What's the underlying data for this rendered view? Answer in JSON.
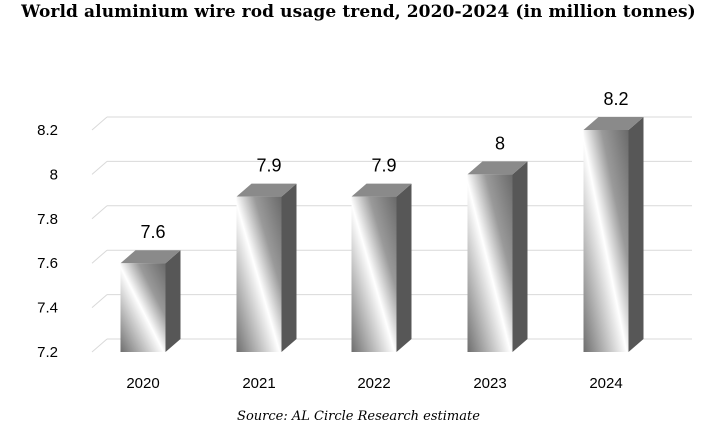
{
  "title": "World aluminium wire rod usage trend, 2020-2024 (in million tonnes)",
  "source": "Source: AL Circle Research estimate",
  "colors": {
    "front_dark": "#6a6a6a",
    "front_light": "#ffffff",
    "side": "#575757",
    "top": "#8a8a8a",
    "grid": "#d9d9d9"
  },
  "chart_data": {
    "type": "bar",
    "style": "3d-cylinder-like box",
    "title": "World aluminium wire rod usage trend, 2020-2024 (in million tonnes)",
    "categories": [
      "2020",
      "2021",
      "2022",
      "2023",
      "2024"
    ],
    "values": [
      7.6,
      7.9,
      7.9,
      8,
      8.2
    ],
    "data_labels": [
      "7.6",
      "7.9",
      "7.9",
      "8",
      "8.2"
    ],
    "ylim": [
      7.2,
      8.2
    ],
    "yticks": [
      7.2,
      7.4,
      7.6,
      7.8,
      8,
      8.2
    ],
    "ytick_labels": [
      "7.2",
      "7.4",
      "7.6",
      "7.8",
      "8",
      "8.2"
    ],
    "grid": true,
    "legend": false,
    "xlabel": "",
    "ylabel": ""
  }
}
